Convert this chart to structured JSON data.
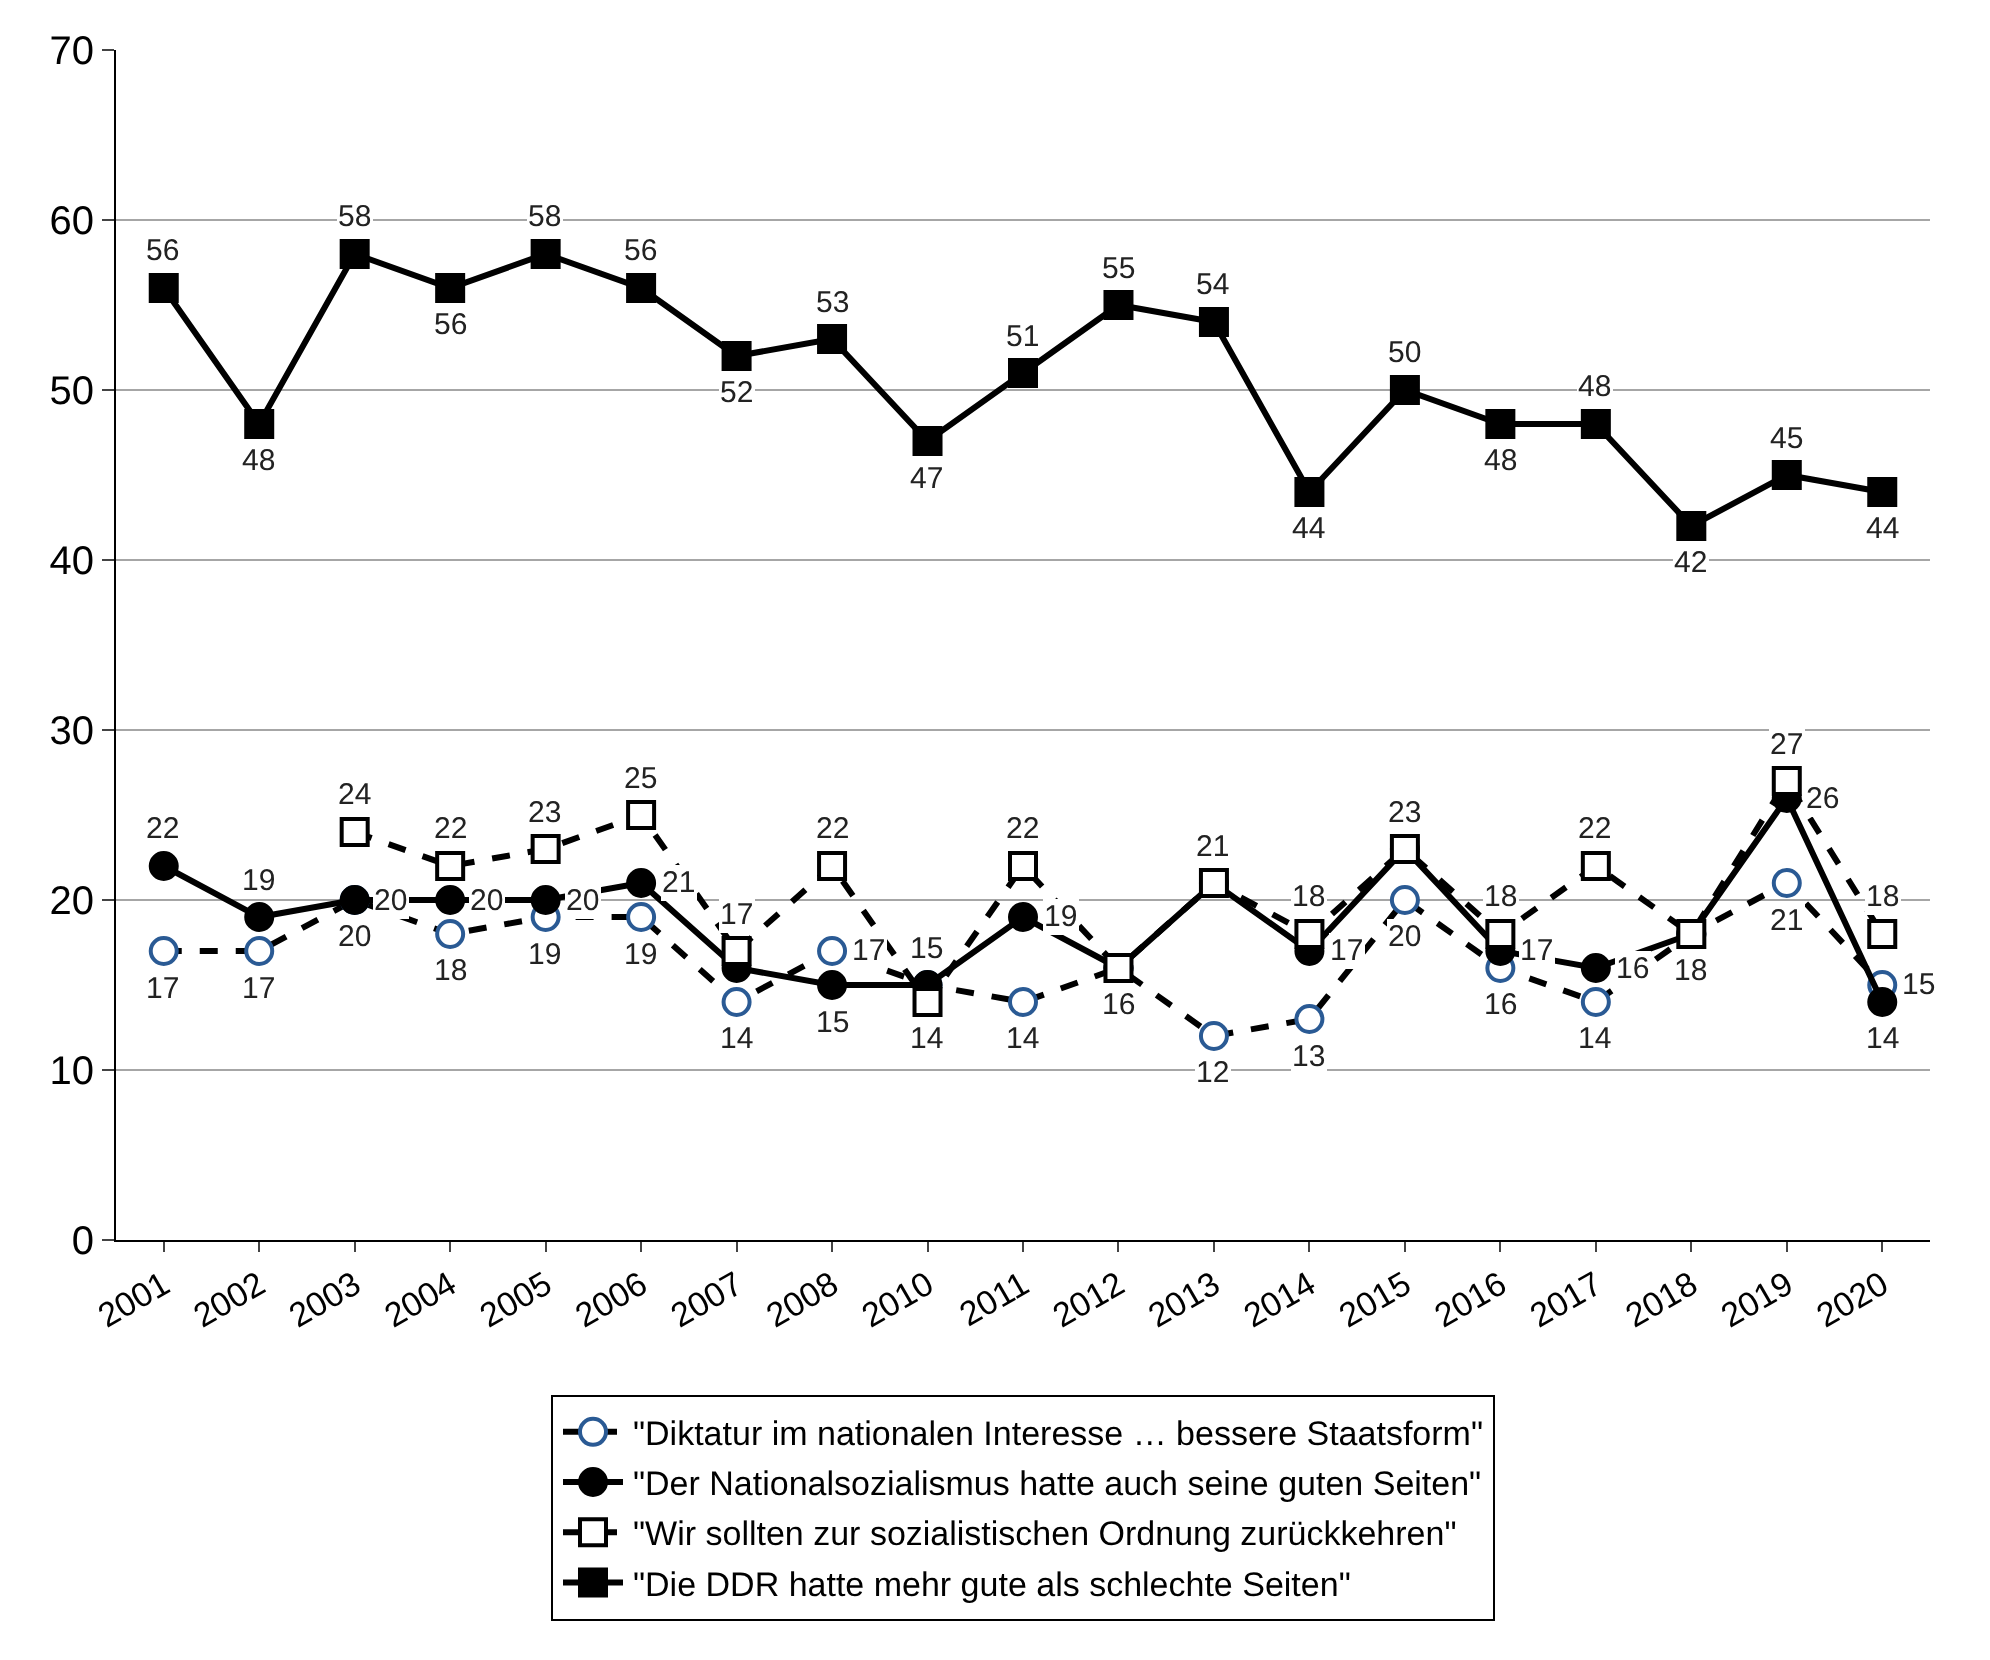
{
  "chart_data": {
    "type": "line",
    "categories": [
      "2001",
      "2002",
      "2003",
      "2004",
      "2005",
      "2006",
      "2007",
      "2008",
      "2010",
      "2011",
      "2012",
      "2013",
      "2014",
      "2015",
      "2016",
      "2017",
      "2018",
      "2019",
      "2020"
    ],
    "series": [
      {
        "name": "\"Diktatur im nationalen Interesse … bessere Staatsform\"",
        "color": "#000000",
        "marker": "circle",
        "line_style": "dashed",
        "values": [
          17,
          17,
          20,
          18,
          19,
          19,
          14,
          17,
          15,
          14,
          16,
          12,
          13,
          20,
          16,
          14,
          18,
          21,
          15
        ],
        "value_labels": [
          "17",
          "17",
          "20",
          "18",
          "19",
          "19",
          "14",
          "17",
          null,
          "14",
          null,
          "12",
          "13",
          "20",
          "16",
          "14",
          null,
          "21",
          "15"
        ]
      },
      {
        "name": "\"Der Nationalsozialismus hatte auch seine guten Seiten\"",
        "color": "#000000",
        "marker": "circle",
        "line_style": "solid",
        "values": [
          22,
          19,
          20,
          20,
          20,
          21,
          16,
          15,
          15,
          19,
          16,
          21,
          17,
          23,
          17,
          16,
          18,
          26,
          14
        ],
        "value_labels": [
          "22",
          "19",
          "20",
          "20",
          "20",
          "21",
          null,
          "15",
          "15",
          "19",
          null,
          null,
          "17",
          null,
          "17",
          "16",
          null,
          "26",
          "14"
        ]
      },
      {
        "name": "\"Wir sollten zur sozialistischen Ordnung zurückkehren\"",
        "color": "#000000",
        "marker": "square",
        "line_style": "dashed",
        "values": [
          null,
          null,
          24,
          22,
          23,
          25,
          17,
          22,
          14,
          22,
          16,
          21,
          18,
          23,
          18,
          22,
          18,
          27,
          18
        ],
        "value_labels": [
          null,
          null,
          "24",
          "22",
          "23",
          "25",
          "17",
          "22",
          "14",
          "22",
          "16",
          "21",
          "18",
          "23",
          "18",
          "22",
          "18",
          "27",
          "18"
        ]
      },
      {
        "name": "\"Die DDR hatte mehr gute als schlechte Seiten\"",
        "color": "#000000",
        "marker": "square",
        "line_style": "solid",
        "values": [
          56,
          48,
          58,
          56,
          58,
          56,
          52,
          53,
          47,
          51,
          55,
          54,
          44,
          50,
          48,
          48,
          42,
          45,
          44
        ],
        "value_labels": [
          "56",
          "48",
          "58",
          "56",
          "58",
          "56",
          "52",
          "53",
          "47",
          "51",
          "55",
          "54",
          "44",
          "50",
          "48",
          "48",
          "42",
          "45",
          "44"
        ]
      }
    ],
    "ylim": [
      0,
      70
    ],
    "yticks": [
      0,
      10,
      20,
      30,
      40,
      50,
      60,
      70
    ],
    "grid": "y",
    "legend": "bottom"
  }
}
